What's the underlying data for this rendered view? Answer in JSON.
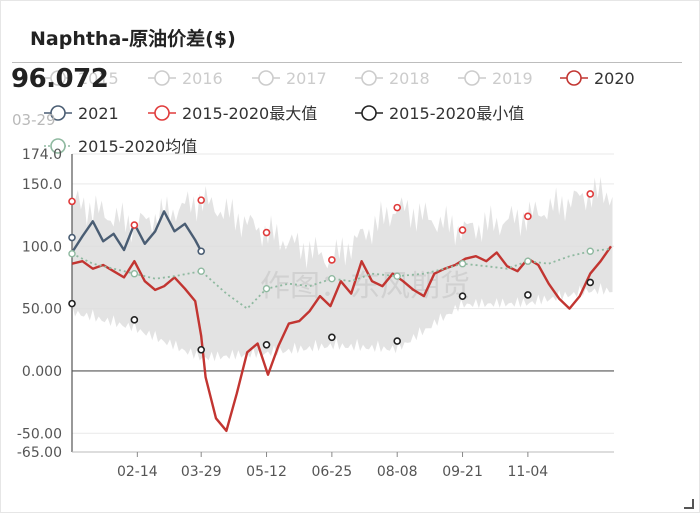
{
  "header": {
    "title": "Naphtha-原油价差($)"
  },
  "readout": {
    "value": "96.072",
    "date": "03-29"
  },
  "watermark": "作图：东风期货",
  "colors": {
    "y2020": "#c23531",
    "y2021": "#4a5d73",
    "max": "#e03b3b",
    "min": "#222222",
    "avg": "#8fb9a0",
    "range": "#dcdcdc",
    "inactive": "#cccccc"
  },
  "chart_data": {
    "type": "line",
    "title": "Naphtha-原油价差($)",
    "xlabel": "",
    "ylabel": "",
    "x_ticks": [
      "02-14",
      "03-29",
      "05-12",
      "06-25",
      "08-08",
      "09-21",
      "11-04"
    ],
    "y_ticks": [
      "174.0",
      "150.0",
      "100.0",
      "50.00",
      "0.000",
      "-50.00",
      "-65.00"
    ],
    "ylim": [
      -65,
      174
    ],
    "legend_position": "top",
    "legend": [
      {
        "name": "2015",
        "active": false
      },
      {
        "name": "2016",
        "active": false
      },
      {
        "name": "2017",
        "active": false
      },
      {
        "name": "2018",
        "active": false
      },
      {
        "name": "2019",
        "active": false
      },
      {
        "name": "2020",
        "active": true
      },
      {
        "name": "2021",
        "active": true
      },
      {
        "name": "2015-2020最大值",
        "active": true
      },
      {
        "name": "2015-2020最小值",
        "active": true
      },
      {
        "name": "2015-2020均值",
        "active": true
      }
    ],
    "series": [
      {
        "name": "2020",
        "x": [
          "01-01",
          "01-08",
          "01-15",
          "01-22",
          "01-29",
          "02-05",
          "02-12",
          "02-19",
          "02-26",
          "03-04",
          "03-11",
          "03-18",
          "03-25",
          "03-29",
          "04-01",
          "04-08",
          "04-15",
          "04-22",
          "04-29",
          "05-06",
          "05-13",
          "05-20",
          "05-27",
          "06-03",
          "06-10",
          "06-17",
          "06-24",
          "07-01",
          "07-08",
          "07-15",
          "07-22",
          "07-29",
          "08-05",
          "08-12",
          "08-19",
          "08-26",
          "09-02",
          "09-09",
          "09-16",
          "09-23",
          "09-30",
          "10-07",
          "10-14",
          "10-21",
          "10-28",
          "11-04",
          "11-11",
          "11-18",
          "11-25",
          "12-02",
          "12-09",
          "12-16",
          "12-23",
          "12-30"
        ],
        "values": [
          86,
          88,
          82,
          85,
          80,
          75,
          88,
          72,
          65,
          68,
          75,
          66,
          56,
          28,
          -5,
          -38,
          -48,
          -18,
          15,
          22,
          -3,
          20,
          38,
          40,
          48,
          60,
          52,
          72,
          62,
          88,
          72,
          68,
          78,
          72,
          65,
          60,
          78,
          82,
          85,
          90,
          92,
          88,
          95,
          84,
          80,
          90,
          85,
          70,
          58,
          50,
          60,
          78,
          88,
          100
        ]
      },
      {
        "name": "2021",
        "x": [
          "01-01",
          "01-08",
          "01-15",
          "01-22",
          "01-29",
          "02-05",
          "02-12",
          "02-19",
          "02-26",
          "03-04",
          "03-11",
          "03-18",
          "03-25",
          "03-29"
        ],
        "values": [
          95,
          108,
          120,
          104,
          110,
          97,
          118,
          102,
          112,
          128,
          112,
          118,
          105,
          96
        ]
      },
      {
        "name": "2015-2020最大值",
        "x": [
          "01-01",
          "02-12",
          "03-29",
          "05-12",
          "06-25",
          "08-08",
          "09-21",
          "11-04",
          "12-16"
        ],
        "values": [
          136,
          117,
          137,
          111,
          89,
          131,
          113,
          124,
          142
        ]
      },
      {
        "name": "2015-2020最小值",
        "x": [
          "01-01",
          "02-12",
          "03-29",
          "05-12",
          "06-25",
          "08-08",
          "09-21",
          "11-04",
          "12-16"
        ],
        "values": [
          54,
          41,
          17,
          21,
          27,
          24,
          60,
          61,
          71
        ]
      },
      {
        "name": "2015-2020均值",
        "x": [
          "01-01",
          "01-15",
          "01-29",
          "02-12",
          "02-26",
          "03-11",
          "03-29",
          "04-15",
          "04-29",
          "05-12",
          "05-27",
          "06-10",
          "06-25",
          "07-08",
          "07-22",
          "08-08",
          "08-26",
          "09-09",
          "09-21",
          "10-07",
          "10-21",
          "11-04",
          "11-18",
          "12-02",
          "12-16",
          "12-30"
        ],
        "values": [
          94,
          86,
          82,
          78,
          74,
          76,
          80,
          62,
          50,
          66,
          70,
          68,
          74,
          72,
          78,
          76,
          78,
          82,
          86,
          84,
          82,
          88,
          86,
          92,
          96,
          98
        ]
      }
    ]
  }
}
